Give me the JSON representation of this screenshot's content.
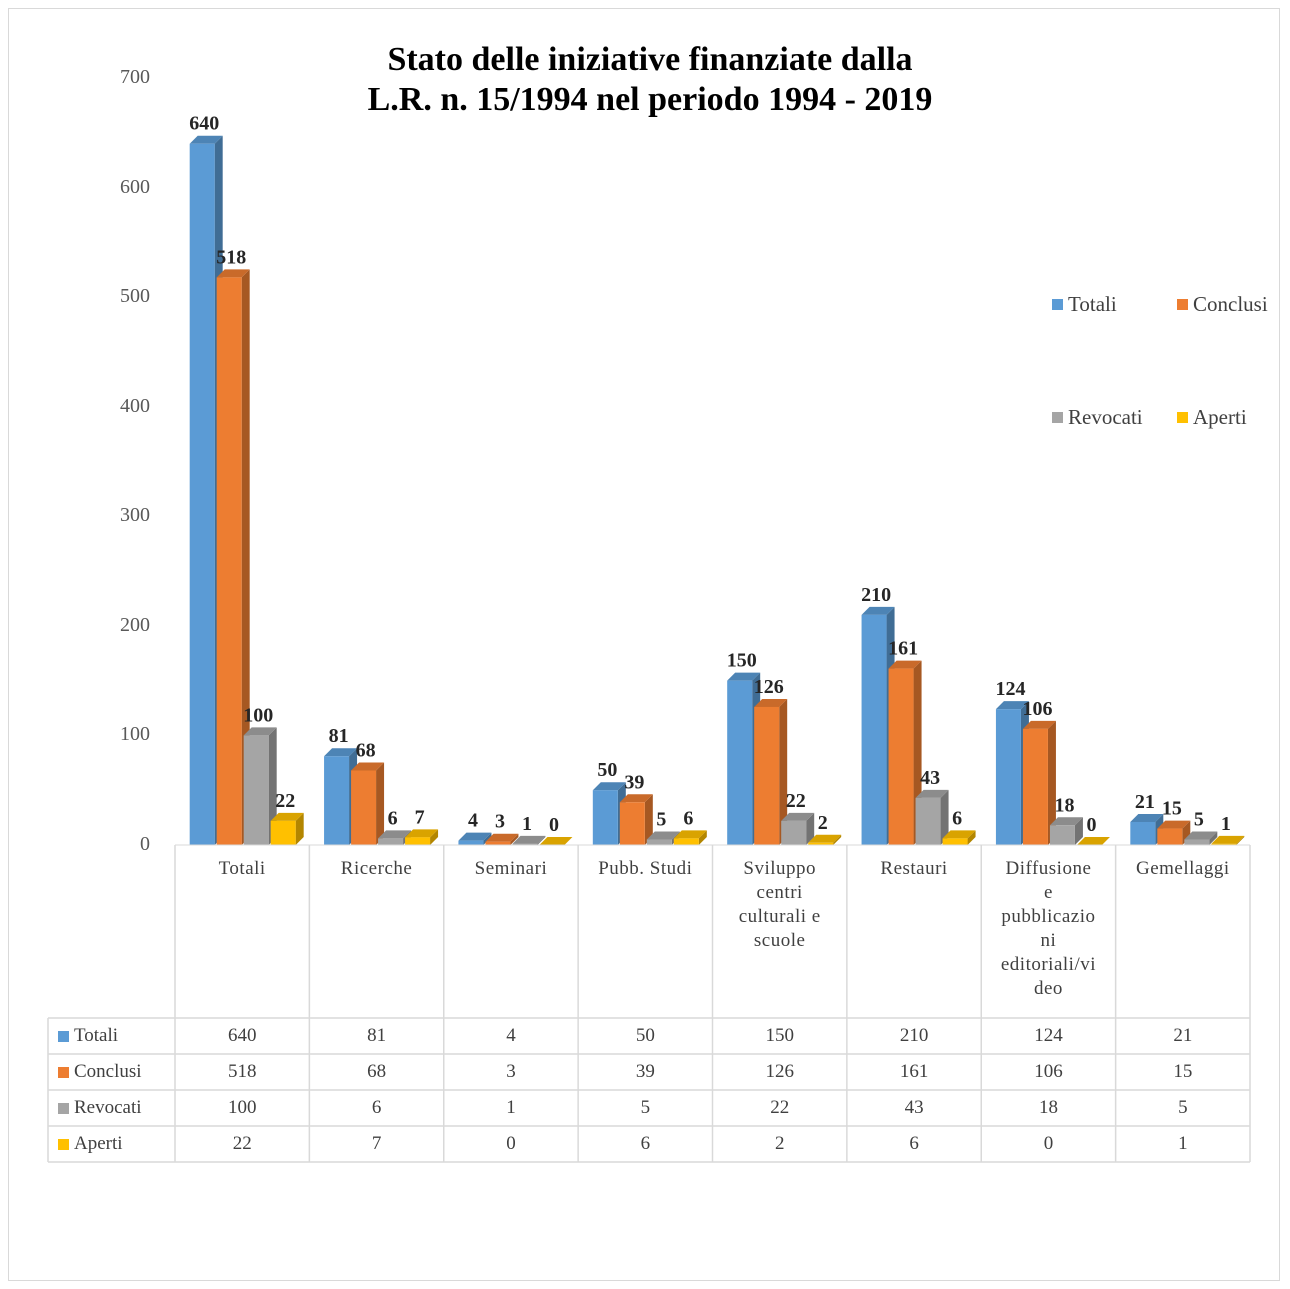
{
  "chart_data": {
    "type": "bar",
    "title_line1": "Stato delle iniziative finanziate dalla",
    "title_line2": "L.R. n.  15/1994  nel periodo 1994 - 2019",
    "categories": [
      "Totali",
      "Ricerche",
      "Seminari",
      "Pubb. Studi",
      "Sviluppo centri culturali e scuole",
      "Restauri",
      "Diffusione e pubblicazioni editoriali/video",
      "Gemellaggi"
    ],
    "category_lines": [
      [
        "Totali"
      ],
      [
        "Ricerche"
      ],
      [
        "Seminari"
      ],
      [
        "Pubb. Studi"
      ],
      [
        "Sviluppo",
        "centri",
        "culturali e",
        "scuole"
      ],
      [
        "Restauri"
      ],
      [
        "Diffusione",
        "e",
        "pubblicazio",
        "ni",
        "editoriali/vi",
        "deo"
      ],
      [
        "Gemellaggi"
      ]
    ],
    "series": [
      {
        "name": "Totali",
        "color": "#5b9bd5",
        "values": [
          640,
          81,
          4,
          50,
          150,
          210,
          124,
          21
        ]
      },
      {
        "name": "Conclusi",
        "color": "#ed7d31",
        "values": [
          518,
          68,
          3,
          39,
          126,
          161,
          106,
          15
        ]
      },
      {
        "name": "Revocati",
        "color": "#a5a5a5",
        "values": [
          100,
          6,
          1,
          5,
          22,
          43,
          18,
          5
        ]
      },
      {
        "name": "Aperti",
        "color": "#ffc000",
        "values": [
          22,
          7,
          0,
          6,
          2,
          6,
          0,
          1
        ]
      }
    ],
    "ylim": [
      0,
      700
    ],
    "yticks": [
      0,
      100,
      200,
      300,
      400,
      500,
      600,
      700
    ],
    "legend_position": "right",
    "data_table": true,
    "style": "3d-clustered-column"
  }
}
